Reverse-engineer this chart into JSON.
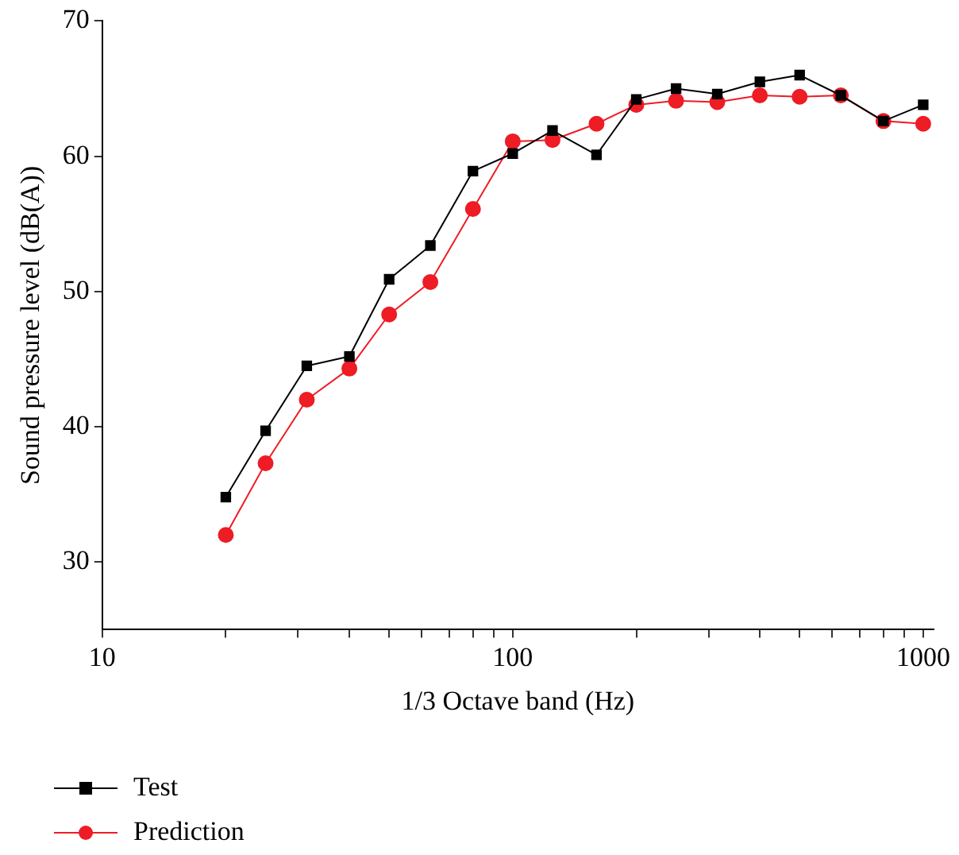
{
  "chart_data": {
    "type": "line",
    "xlabel": "1/3 Octave band (Hz)",
    "ylabel": "Sound pressure level (dB(A))",
    "x": [
      20,
      25,
      31.5,
      40,
      50,
      63,
      80,
      100,
      125,
      160,
      200,
      250,
      315,
      400,
      500,
      630,
      800,
      1000
    ],
    "series": [
      {
        "name": "Test",
        "color": "#000000",
        "marker": "square",
        "values": [
          34.8,
          39.7,
          44.5,
          45.2,
          50.9,
          53.4,
          58.9,
          60.2,
          61.9,
          60.1,
          64.2,
          65.0,
          64.6,
          65.5,
          66.0,
          64.5,
          62.6,
          63.8
        ]
      },
      {
        "name": "Prediction",
        "color": "#ee1c25",
        "marker": "circle",
        "values": [
          32.0,
          37.3,
          42.0,
          44.3,
          48.3,
          50.7,
          56.1,
          61.1,
          61.2,
          62.4,
          63.8,
          64.1,
          64.0,
          64.5,
          64.4,
          64.5,
          62.6,
          62.4
        ]
      }
    ],
    "log": "x",
    "xlim": [
      10,
      1060
    ],
    "xticks": [
      10,
      {
        "value": 20,
        "label": null
      },
      {
        "value": 30,
        "label": null
      },
      {
        "value": 40,
        "label": null
      },
      {
        "value": 50,
        "label": null
      },
      {
        "value": 60,
        "label": null
      },
      {
        "value": 70,
        "label": null
      },
      {
        "value": 80,
        "label": null
      },
      {
        "value": 90,
        "label": null
      },
      100,
      {
        "value": 200,
        "label": null
      },
      {
        "value": 300,
        "label": null
      },
      {
        "value": 400,
        "label": null
      },
      {
        "value": 500,
        "label": null
      },
      {
        "value": 600,
        "label": null
      },
      {
        "value": 700,
        "label": null
      },
      {
        "value": 800,
        "label": null
      },
      {
        "value": 900,
        "label": null
      },
      1000
    ],
    "ylim": [
      25,
      70
    ],
    "yticks": [
      30,
      40,
      50,
      60,
      70
    ],
    "grid": false,
    "legend": "bottom left",
    "line_style": "solid"
  }
}
